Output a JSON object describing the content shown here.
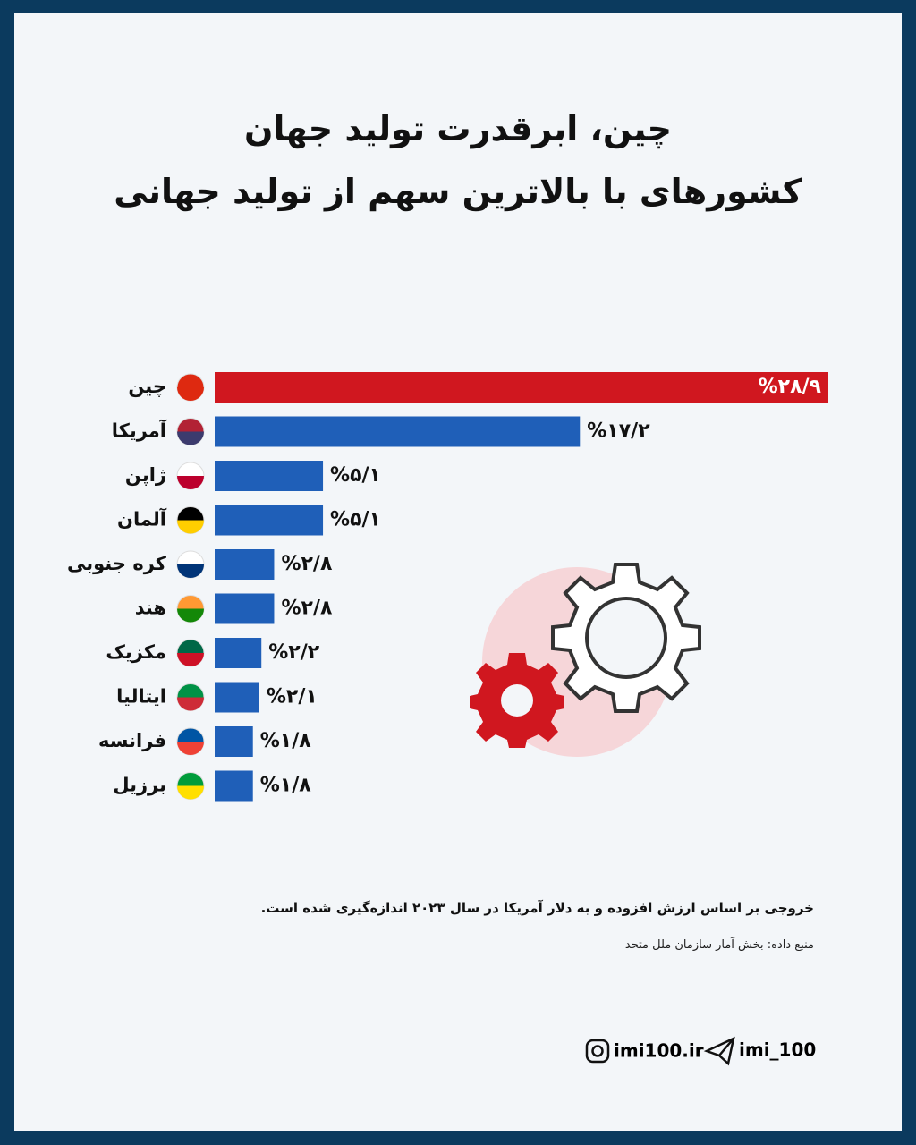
{
  "chart_data": {
    "type": "bar",
    "orientation": "horizontal",
    "title": "چین، ابرقدرت تولید جهان",
    "subtitle": "کشورهای با بالاترین سهم از تولید جهانی",
    "categories": [
      "چین",
      "آمریکا",
      "ژاپن",
      "آلمان",
      "کره جنوبی",
      "هند",
      "مکزیک",
      "ایتالیا",
      "فرانسه",
      "برزیل"
    ],
    "values": [
      28.9,
      17.2,
      5.1,
      5.1,
      2.8,
      2.8,
      2.2,
      2.1,
      1.8,
      1.8
    ],
    "value_labels": [
      "%۲۸/۹",
      "%۱۷/۲",
      "%۵/۱",
      "%۵/۱",
      "%۲/۸",
      "%۲/۸",
      "%۲/۲",
      "%۲/۱",
      "%۱/۸",
      "%۱/۸"
    ],
    "colors": [
      "#d0171f",
      "#1f5fb8",
      "#1f5fb8",
      "#1f5fb8",
      "#1f5fb8",
      "#1f5fb8",
      "#1f5fb8",
      "#1f5fb8",
      "#1f5fb8",
      "#1f5fb8"
    ],
    "note": "خروجی بر اساس ارزش افزوده و به دلار آمریکا در سال ۲۰۲۳ اندازه‌گیری شده است.",
    "source": "منبع داده: بخش آمار سازمان ملل متحد"
  },
  "footer": {
    "website": "imi100.ir",
    "telegram": "imi_100"
  }
}
